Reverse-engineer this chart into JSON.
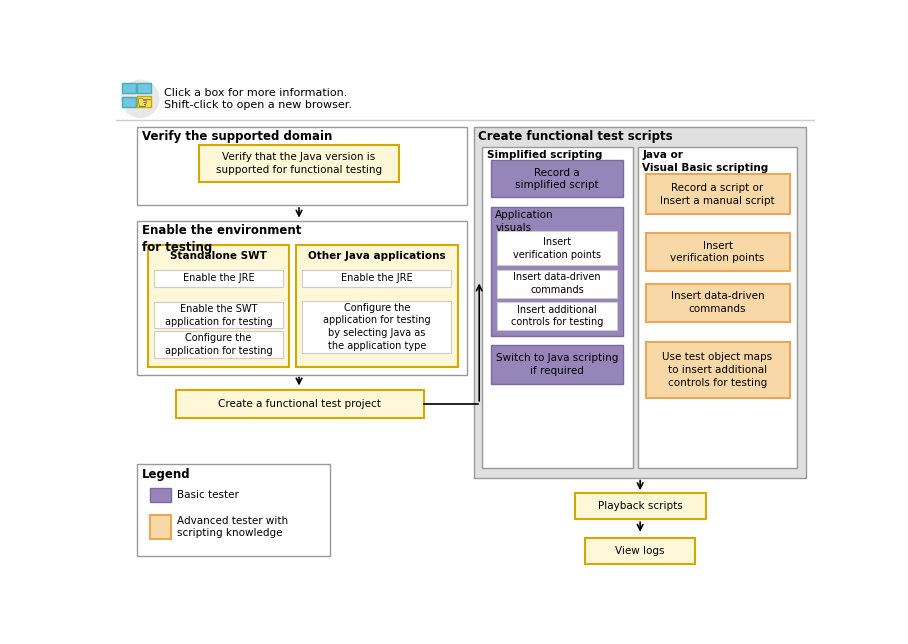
{
  "bg_color": "#ffffff",
  "header_text1": "Click a box for more information.",
  "header_text2": "Shift-click to open a new browser.",
  "sec1_title": "Verify the supported domain",
  "sec1_box": "Verify that the Java version is\nsupported for functional testing",
  "sec2_title": "Enable the environment\nfor testing",
  "sec2_left_title": "Standalone SWT",
  "sec2_left_items": [
    "Enable the JRE",
    "Enable the SWT\napplication for testing",
    "Configure the\napplication for testing"
  ],
  "sec2_right_title": "Other Java applications",
  "sec2_right_items": [
    "Enable the JRE",
    "Configure the\napplication for testing\nby selecting Java as\nthe application type"
  ],
  "sec3_title": "Create a functional test project",
  "sec4_title": "Create functional test scripts",
  "sec4_left_title": "Simplified scripting",
  "sec4_left_item0": "Record a\nsimplified script",
  "sec4_left_item1": "Application\nvisuals",
  "sec4_left_item2": "Insert\nverification points",
  "sec4_left_item3": "Insert data-driven\ncommands",
  "sec4_left_item4": "Insert additional\ncontrols for testing",
  "sec4_left_item5": "Switch to Java scripting\nif required",
  "sec4_right_title": "Java or\nVisual Basic scripting",
  "sec4_right_item0": "Record a script or\nInsert a manual script",
  "sec4_right_item1": "Insert\nverification points",
  "sec4_right_item2": "Insert data-driven\ncommands",
  "sec4_right_item3": "Use test object maps\nto insert additional\ncontrols for testing",
  "bottom1": "Playback scripts",
  "bottom2": "View logs",
  "legend_title": "Legend",
  "legend_basic": "Basic tester",
  "legend_advanced": "Advanced tester with\nscripting knowledge",
  "col_purple": "#9585b8",
  "col_purple_border": "#7a6aa0",
  "col_orange_fill": "#f9d8a8",
  "col_orange_border": "#e8a858",
  "col_yellow_fill": "#fef8d8",
  "col_yellow_border": "#d4a800",
  "col_white": "#ffffff",
  "col_gray_bg": "#e0e0e0",
  "col_gray_border": "#999999",
  "col_light_gray": "#cccccc",
  "col_black": "#000000"
}
